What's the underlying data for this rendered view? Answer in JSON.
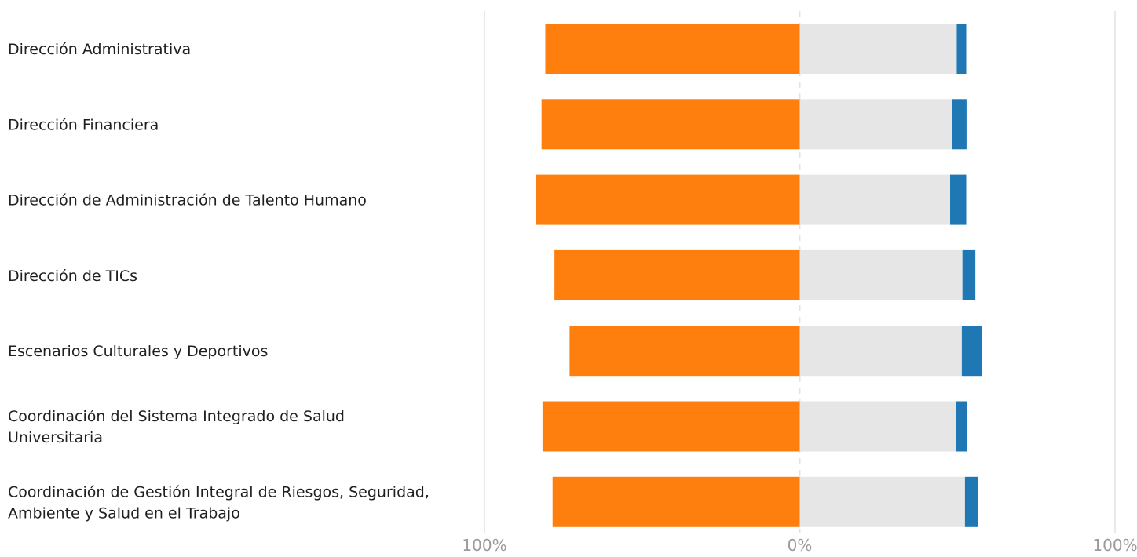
{
  "chart_data": {
    "type": "bar",
    "orientation": "horizontal",
    "stacking": "diverging",
    "categories": [
      "Dirección Administrativa",
      "Dirección Financiera",
      "Dirección de Administración de Talento Humano",
      "Dirección de TICs",
      "Escenarios Culturales y Deportivos",
      "Coordinación del Sistema Integrado de Salud Universitaria",
      "Coordinación de Gestión Integral de Riesgos, Seguridad, Ambiente y Salud en el Trabajo"
    ],
    "series": [
      {
        "color": "#ff7f0e",
        "values": [
          -80.7,
          -81.9,
          -83.6,
          -77.8,
          -73.0,
          -81.6,
          -78.4
        ]
      },
      {
        "color": "#e6e6e6",
        "values": [
          49.8,
          48.4,
          47.7,
          51.6,
          51.4,
          49.6,
          52.4
        ]
      },
      {
        "color": "#1f77b4",
        "values": [
          3.0,
          4.5,
          5.1,
          4.1,
          6.5,
          3.5,
          4.1
        ]
      }
    ],
    "neutral_index": 1,
    "x_ticks": [
      "100%",
      "0%",
      "100%"
    ],
    "xlim": [
      -100,
      100
    ],
    "gridlines": true,
    "legend": "none"
  }
}
